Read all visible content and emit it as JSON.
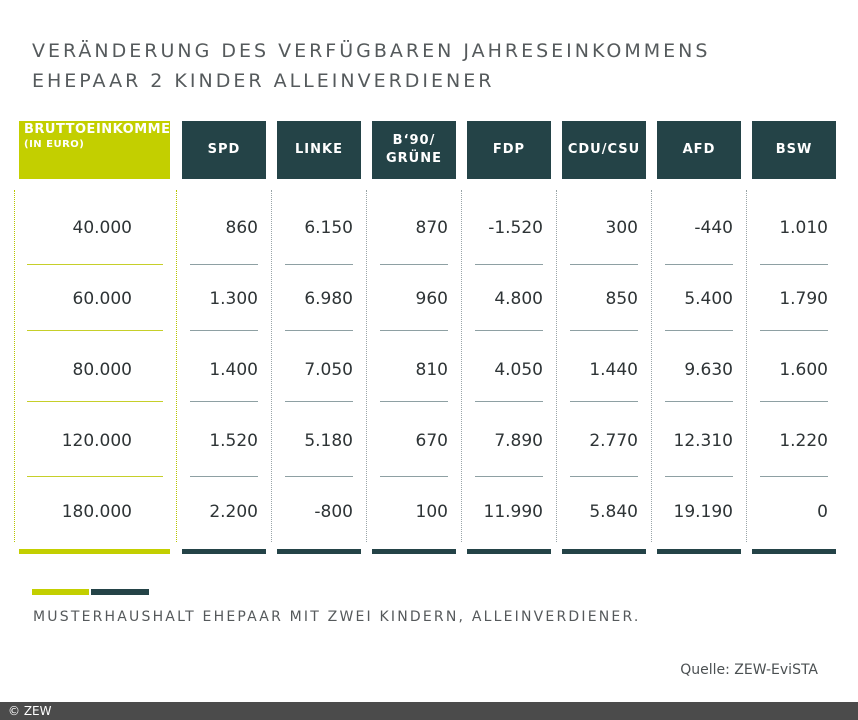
{
  "title": {
    "line1": "VERÄNDERUNG DES VERFÜGBAREN JAHRESEINKOMMENS",
    "line2": "EHEPAAR 2 KINDER ALLEINVERDIENER"
  },
  "colors": {
    "accent": "#c3cf00",
    "header": "#244347",
    "rule": "#8ea0a3"
  },
  "chart_data": {
    "type": "table",
    "header_income_line1": "BRUTTOEINKOMMEN",
    "header_income_line2": "(IN EURO)",
    "columns": [
      "SPD",
      "LINKE",
      "B‘90/\nGRÜNE",
      "FDP",
      "CDU/CSU",
      "AFD",
      "BSW"
    ],
    "rows": [
      {
        "income": "40.000",
        "values": [
          "860",
          "6.150",
          "870",
          "-1.520",
          "300",
          "-440",
          "1.010"
        ]
      },
      {
        "income": "60.000",
        "values": [
          "1.300",
          "6.980",
          "960",
          "4.800",
          "850",
          "5.400",
          "1.790"
        ]
      },
      {
        "income": "80.000",
        "values": [
          "1.400",
          "7.050",
          "810",
          "4.050",
          "1.440",
          "9.630",
          "1.600"
        ]
      },
      {
        "income": "120.000",
        "values": [
          "1.520",
          "5.180",
          "670",
          "7.890",
          "2.770",
          "12.310",
          "1.220"
        ]
      },
      {
        "income": "180.000",
        "values": [
          "2.200",
          "-800",
          "100",
          "11.990",
          "5.840",
          "19.190",
          "0"
        ]
      }
    ]
  },
  "footnote": "MUSTERHAUSHALT EHEPAAR MIT ZWEI KINDERN, ALLEINVERDIENER.",
  "source": "Quelle: ZEW-EviSTA",
  "copyright": "© ZEW"
}
